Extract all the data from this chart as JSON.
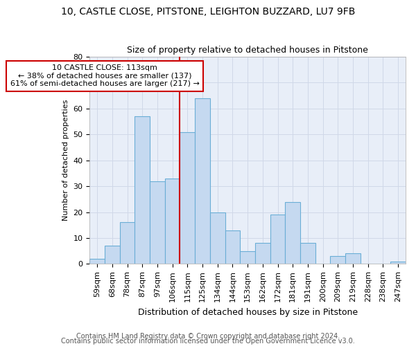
{
  "title1": "10, CASTLE CLOSE, PITSTONE, LEIGHTON BUZZARD, LU7 9FB",
  "title2": "Size of property relative to detached houses in Pitstone",
  "xlabel": "Distribution of detached houses by size in Pitstone",
  "ylabel": "Number of detached properties",
  "categories": [
    "59sqm",
    "68sqm",
    "78sqm",
    "87sqm",
    "97sqm",
    "106sqm",
    "115sqm",
    "125sqm",
    "134sqm",
    "144sqm",
    "153sqm",
    "162sqm",
    "172sqm",
    "181sqm",
    "191sqm",
    "200sqm",
    "209sqm",
    "219sqm",
    "228sqm",
    "238sqm",
    "247sqm"
  ],
  "values": [
    2,
    7,
    16,
    57,
    32,
    33,
    51,
    64,
    20,
    13,
    5,
    8,
    19,
    24,
    8,
    0,
    3,
    4,
    0,
    0,
    1
  ],
  "bar_color": "#c5d9f0",
  "bar_edge_color": "#6aaed6",
  "vline_x": 5.5,
  "vline_color": "#cc0000",
  "annotation_text": "10 CASTLE CLOSE: 113sqm\n← 38% of detached houses are smaller (137)\n61% of semi-detached houses are larger (217) →",
  "annotation_box_color": "#ffffff",
  "annotation_box_edge": "#cc0000",
  "ylim": [
    0,
    80
  ],
  "yticks": [
    0,
    10,
    20,
    30,
    40,
    50,
    60,
    70,
    80
  ],
  "grid_color": "#d0d8e8",
  "fig_bg_color": "#ffffff",
  "plot_bg_color": "#e8eef8",
  "footer1": "Contains HM Land Registry data © Crown copyright and database right 2024.",
  "footer2": "Contains public sector information licensed under the Open Government Licence v3.0.",
  "title1_fontsize": 10,
  "title2_fontsize": 9,
  "xlabel_fontsize": 9,
  "ylabel_fontsize": 8,
  "tick_fontsize": 8,
  "annotation_fontsize": 8,
  "footer_fontsize": 7
}
